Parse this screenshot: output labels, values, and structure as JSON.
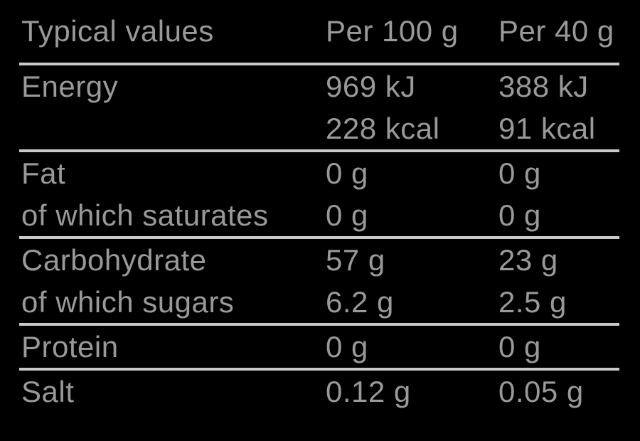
{
  "table": {
    "title": "nutrition-information",
    "headers": {
      "label": "Typical values",
      "per100": "Per 100 g",
      "per40": "Per 40 g"
    },
    "rows": [
      {
        "label": "Energy",
        "per100": "969 kJ",
        "per40": "388 kJ"
      },
      {
        "label": "",
        "per100": "228 kcal",
        "per40": "91 kcal"
      },
      {
        "label": "Fat",
        "per100": "0 g",
        "per40": "0 g"
      },
      {
        "label": "of which saturates",
        "per100": "0 g",
        "per40": "0 g"
      },
      {
        "label": "Carbohydrate",
        "per100": "57 g",
        "per40": "23 g"
      },
      {
        "label": "of which sugars",
        "per100": "6.2 g",
        "per40": "2.5 g"
      },
      {
        "label": "Protein",
        "per100": "0 g",
        "per40": "0 g"
      },
      {
        "label": "Salt",
        "per100": "0.12 g",
        "per40": "0.05 g"
      }
    ]
  },
  "colors": {
    "background": "#000000",
    "text": "#98999b",
    "divider": "#c9c9c9"
  }
}
